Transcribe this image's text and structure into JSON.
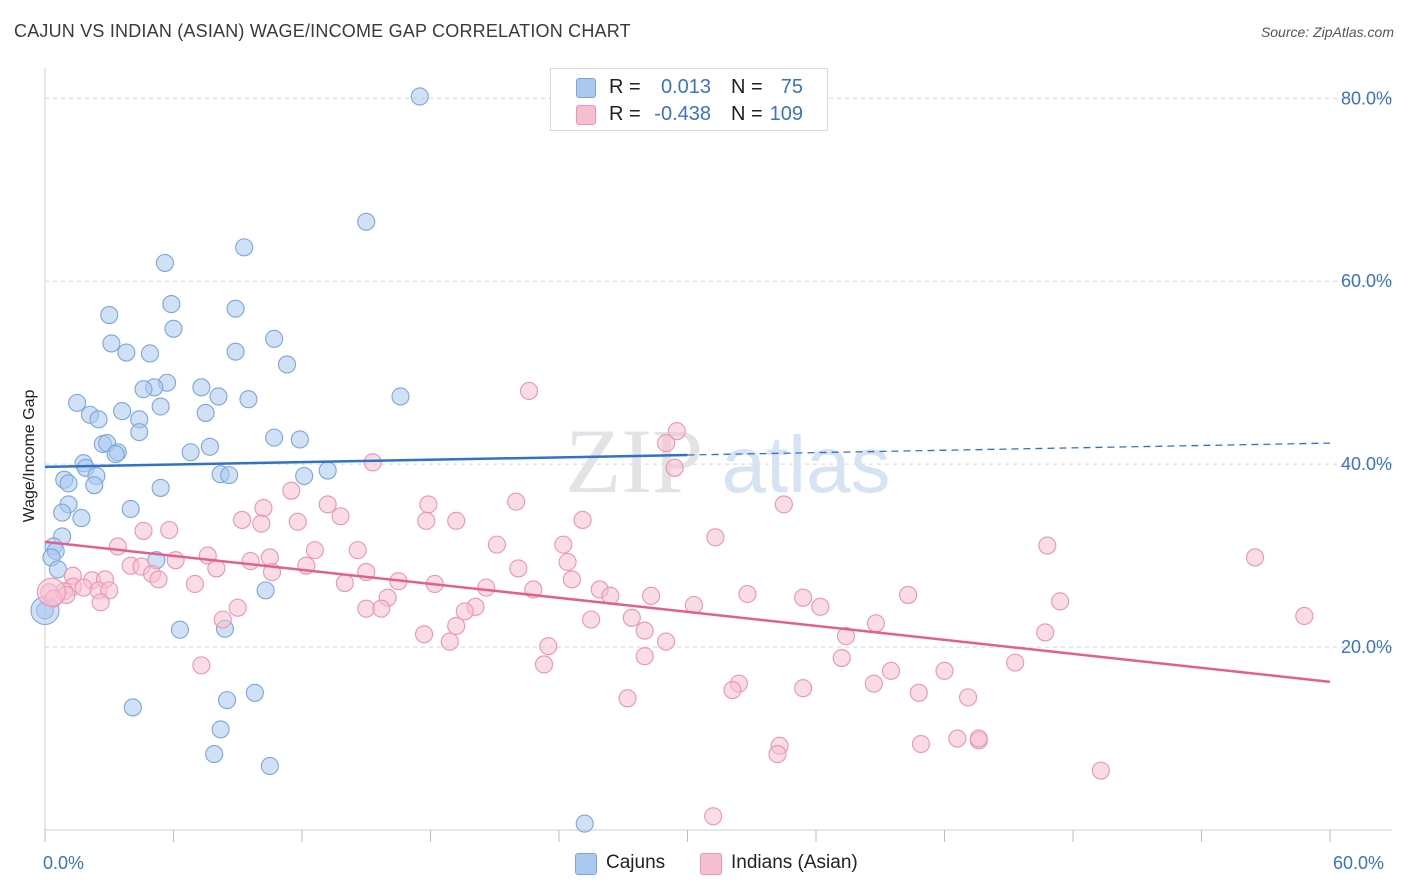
{
  "title": "CAJUN VS INDIAN (ASIAN) WAGE/INCOME GAP CORRELATION CHART",
  "source": "Source: ZipAtlas.com",
  "watermark": {
    "zip": "ZIP",
    "atlas": "atlas"
  },
  "stats": {
    "cajun": {
      "r_label": "R =",
      "r_value": "0.013",
      "n_label": "N =",
      "n_value": "75"
    },
    "indian": {
      "r_label": "R =",
      "r_value": "-0.438",
      "n_label": "N =",
      "n_value": "109"
    }
  },
  "legend": {
    "cajun": "Cajuns",
    "indian": "Indians (Asian)"
  },
  "colors": {
    "cajun_fill": "#a9c9ef",
    "cajun_stroke": "#7aa6dd",
    "cajun_line": "#2f73c9",
    "indian_fill": "#f6bfd1",
    "indian_stroke": "#eb94b3",
    "indian_line": "#e35f8d",
    "axis_text": "#3b73c4",
    "grid": "#d5d5d5"
  },
  "chart_data": {
    "type": "scatter",
    "title": "CAJUN VS INDIAN (ASIAN) WAGE/INCOME GAP CORRELATION CHART",
    "xlabel": "",
    "ylabel": "Wage/Income Gap",
    "xlim": [
      0,
      60
    ],
    "ylim": [
      0,
      82
    ],
    "x_tick_labels": [
      "0.0%",
      "60.0%"
    ],
    "y_ticks": [
      20,
      40,
      60,
      80
    ],
    "y_tick_labels": [
      "20.0%",
      "40.0%",
      "60.0%",
      "80.0%"
    ],
    "x_minor_ticks": [
      0,
      6,
      12,
      18,
      24,
      30,
      36,
      42,
      48,
      54,
      60
    ],
    "series": [
      {
        "name": "Cajuns",
        "r": 0.013,
        "n": 75,
        "trend": {
          "x0": 0,
          "y0": 39.7,
          "x1": 30,
          "y1": 41.0,
          "dash_x1": 60,
          "dash_y1": 42.3
        },
        "points": [
          [
            17.5,
            80.2
          ],
          [
            15,
            66.5
          ],
          [
            9.3,
            63.7
          ],
          [
            5.6,
            62.0
          ],
          [
            5.9,
            57.5
          ],
          [
            8.9,
            57.0
          ],
          [
            3,
            56.3
          ],
          [
            6,
            54.8
          ],
          [
            10.7,
            53.7
          ],
          [
            3.1,
            53.2
          ],
          [
            3.8,
            52.2
          ],
          [
            4.9,
            52.1
          ],
          [
            8.9,
            52.3
          ],
          [
            11.3,
            50.9
          ],
          [
            5.7,
            48.9
          ],
          [
            5.1,
            48.4
          ],
          [
            4.6,
            48.2
          ],
          [
            7.3,
            48.4
          ],
          [
            16.6,
            47.4
          ],
          [
            8.1,
            47.4
          ],
          [
            9.5,
            47.1
          ],
          [
            1.5,
            46.7
          ],
          [
            5.4,
            46.3
          ],
          [
            3.6,
            45.8
          ],
          [
            2.1,
            45.4
          ],
          [
            7.5,
            45.6
          ],
          [
            2.5,
            44.9
          ],
          [
            4.4,
            44.9
          ],
          [
            4.4,
            43.5
          ],
          [
            10.7,
            42.9
          ],
          [
            11.9,
            42.7
          ],
          [
            2.7,
            42.2
          ],
          [
            2.9,
            42.3
          ],
          [
            3.4,
            41.3
          ],
          [
            7.7,
            41.9
          ],
          [
            3.3,
            41.1
          ],
          [
            6.8,
            41.3
          ],
          [
            1.8,
            40.1
          ],
          [
            1.9,
            39.6
          ],
          [
            0.9,
            38.3
          ],
          [
            2.4,
            38.7
          ],
          [
            12.1,
            38.7
          ],
          [
            8.2,
            38.9
          ],
          [
            8.6,
            38.8
          ],
          [
            13.2,
            39.3
          ],
          [
            1.1,
            37.9
          ],
          [
            2.3,
            37.7
          ],
          [
            5.4,
            37.4
          ],
          [
            1.1,
            35.6
          ],
          [
            4,
            35.1
          ],
          [
            0.8,
            34.7
          ],
          [
            1.7,
            34.1
          ],
          [
            0.8,
            32.1
          ],
          [
            0.4,
            31.0
          ],
          [
            0.5,
            30.5
          ],
          [
            0.3,
            29.8
          ],
          [
            5.2,
            29.5
          ],
          [
            0.6,
            28.5
          ],
          [
            10.3,
            26.2
          ],
          [
            0,
            24.0
          ],
          [
            6.3,
            21.9
          ],
          [
            8.4,
            22.0
          ],
          [
            9.8,
            15.0
          ],
          [
            8.5,
            14.2
          ],
          [
            4.1,
            13.4
          ],
          [
            8.2,
            11.0
          ],
          [
            7.9,
            8.3
          ],
          [
            10.5,
            7.0
          ],
          [
            25.2,
            0.7
          ]
        ]
      },
      {
        "name": "Indians (Asian)",
        "r": -0.438,
        "n": 109,
        "trend": {
          "x0": 0,
          "y0": 31.5,
          "x1": 60,
          "y1": 16.2
        },
        "points": [
          [
            22.6,
            48.0
          ],
          [
            29.5,
            43.6
          ],
          [
            29,
            42.3
          ],
          [
            15.3,
            40.2
          ],
          [
            29.4,
            39.6
          ],
          [
            11.5,
            37.1
          ],
          [
            22,
            35.9
          ],
          [
            34.5,
            35.6
          ],
          [
            17.9,
            35.6
          ],
          [
            10.2,
            35.2
          ],
          [
            13.2,
            35.6
          ],
          [
            13.8,
            34.3
          ],
          [
            9.2,
            33.9
          ],
          [
            10.1,
            33.5
          ],
          [
            17.8,
            33.8
          ],
          [
            19.2,
            33.8
          ],
          [
            25.1,
            33.9
          ],
          [
            11.8,
            33.7
          ],
          [
            5.8,
            32.8
          ],
          [
            4.6,
            32.7
          ],
          [
            31.3,
            32.0
          ],
          [
            21.1,
            31.2
          ],
          [
            24.2,
            31.2
          ],
          [
            46.8,
            31.1
          ],
          [
            3.4,
            31.0
          ],
          [
            14.6,
            30.6
          ],
          [
            12.6,
            30.6
          ],
          [
            7.6,
            30.0
          ],
          [
            6.1,
            29.5
          ],
          [
            10.5,
            29.8
          ],
          [
            24.4,
            29.3
          ],
          [
            56.5,
            29.8
          ],
          [
            9.6,
            29.4
          ],
          [
            4,
            28.9
          ],
          [
            4.5,
            28.8
          ],
          [
            8,
            28.6
          ],
          [
            12.2,
            28.9
          ],
          [
            15,
            28.2
          ],
          [
            22.1,
            28.6
          ],
          [
            10.6,
            28.2
          ],
          [
            5,
            28.0
          ],
          [
            1.3,
            27.8
          ],
          [
            5.3,
            27.4
          ],
          [
            2.2,
            27.3
          ],
          [
            2.8,
            27.4
          ],
          [
            7,
            26.9
          ],
          [
            14,
            27.0
          ],
          [
            16.5,
            27.2
          ],
          [
            18.2,
            26.9
          ],
          [
            1.3,
            26.6
          ],
          [
            1.8,
            26.5
          ],
          [
            20.6,
            26.5
          ],
          [
            22.8,
            26.3
          ],
          [
            24.6,
            27.4
          ],
          [
            25.9,
            26.3
          ],
          [
            0.9,
            26.1
          ],
          [
            2.5,
            26.2
          ],
          [
            3,
            26.2
          ],
          [
            0.2,
            26.0
          ],
          [
            1,
            25.7
          ],
          [
            0.4,
            25.3
          ],
          [
            35.4,
            25.4
          ],
          [
            40.3,
            25.7
          ],
          [
            32.8,
            25.8
          ],
          [
            28.3,
            25.6
          ],
          [
            26.4,
            25.6
          ],
          [
            47.4,
            25.0
          ],
          [
            16,
            25.4
          ],
          [
            2.6,
            24.9
          ],
          [
            36.2,
            24.4
          ],
          [
            30.3,
            24.6
          ],
          [
            20.1,
            24.4
          ],
          [
            15,
            24.2
          ],
          [
            15.7,
            24.2
          ],
          [
            9,
            24.3
          ],
          [
            19.6,
            23.9
          ],
          [
            58.8,
            23.4
          ],
          [
            27.4,
            23.2
          ],
          [
            8.3,
            23.0
          ],
          [
            25.5,
            23.0
          ],
          [
            38.8,
            22.6
          ],
          [
            19.2,
            22.3
          ],
          [
            17.7,
            21.4
          ],
          [
            46.7,
            21.6
          ],
          [
            28,
            21.8
          ],
          [
            37.4,
            21.2
          ],
          [
            29,
            20.6
          ],
          [
            18.9,
            20.6
          ],
          [
            23.5,
            20.1
          ],
          [
            28,
            19.0
          ],
          [
            37.2,
            18.8
          ],
          [
            45.3,
            18.3
          ],
          [
            7.3,
            18.0
          ],
          [
            23.3,
            18.1
          ],
          [
            39.5,
            17.4
          ],
          [
            42,
            17.4
          ],
          [
            32.4,
            16.0
          ],
          [
            35.4,
            15.5
          ],
          [
            38.7,
            16.0
          ],
          [
            32.1,
            15.3
          ],
          [
            40.8,
            15.0
          ],
          [
            27.2,
            14.4
          ],
          [
            43.1,
            14.5
          ],
          [
            42.6,
            10.0
          ],
          [
            43.6,
            9.8
          ],
          [
            43.6,
            10.0
          ],
          [
            40.9,
            9.4
          ],
          [
            34.3,
            9.2
          ],
          [
            34.2,
            8.3
          ],
          [
            49.3,
            6.5
          ],
          [
            31.2,
            1.5
          ]
        ]
      }
    ]
  }
}
